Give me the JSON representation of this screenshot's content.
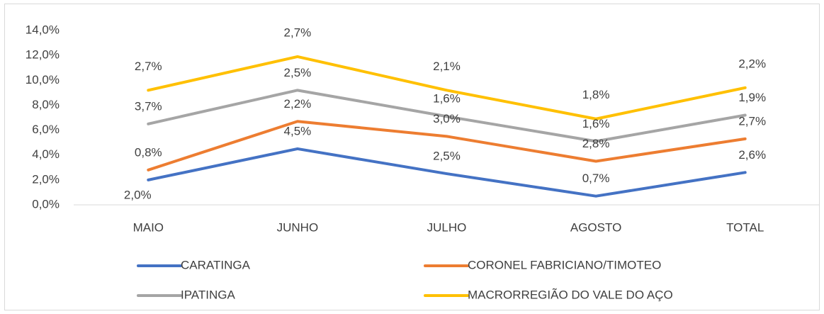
{
  "chart_data": {
    "type": "line",
    "stacked": true,
    "categories": [
      "MAIO",
      "JUNHO",
      "JULHO",
      "AGOSTO",
      "TOTAL"
    ],
    "series": [
      {
        "name": "CARATINGA",
        "color": "#4472c4",
        "values": [
          2.0,
          4.5,
          2.5,
          0.7,
          2.6
        ],
        "value_labels": [
          "2,0%",
          "4,5%",
          "2,5%",
          "0,7%",
          "2,6%"
        ]
      },
      {
        "name": "CORONEL FABRICIANO/TIMOTEO",
        "color": "#ed7d31",
        "values": [
          0.8,
          2.2,
          3.0,
          2.8,
          2.7
        ],
        "value_labels": [
          "0,8%",
          "2,2%",
          "3,0%",
          "2,8%",
          "2,7%"
        ]
      },
      {
        "name": "IPATINGA",
        "color": "#a5a5a5",
        "values": [
          3.7,
          2.5,
          1.6,
          1.6,
          1.9
        ],
        "value_labels": [
          "3,7%",
          "2,5%",
          "1,6%",
          "1,6%",
          "1,9%"
        ]
      },
      {
        "name": "MACRORREGIÃO DO VALE DO AÇO",
        "color": "#ffc000",
        "values": [
          2.7,
          2.7,
          2.1,
          1.8,
          2.2
        ],
        "value_labels": [
          "2,7%",
          "2,7%",
          "2,1%",
          "1,8%",
          "2,2%"
        ]
      }
    ],
    "ylim": [
      0,
      14
    ],
    "yticks": [
      {
        "value": 0,
        "label": "0,0%"
      },
      {
        "value": 2,
        "label": "2,0%"
      },
      {
        "value": 4,
        "label": "4,0%"
      },
      {
        "value": 6,
        "label": "6,0%"
      },
      {
        "value": 8,
        "label": "8,0%"
      },
      {
        "value": 10,
        "label": "10,0%"
      },
      {
        "value": 12,
        "label": "12,0%"
      },
      {
        "value": 14,
        "label": "14,0%"
      }
    ],
    "grid": false,
    "legend": "bottom"
  }
}
